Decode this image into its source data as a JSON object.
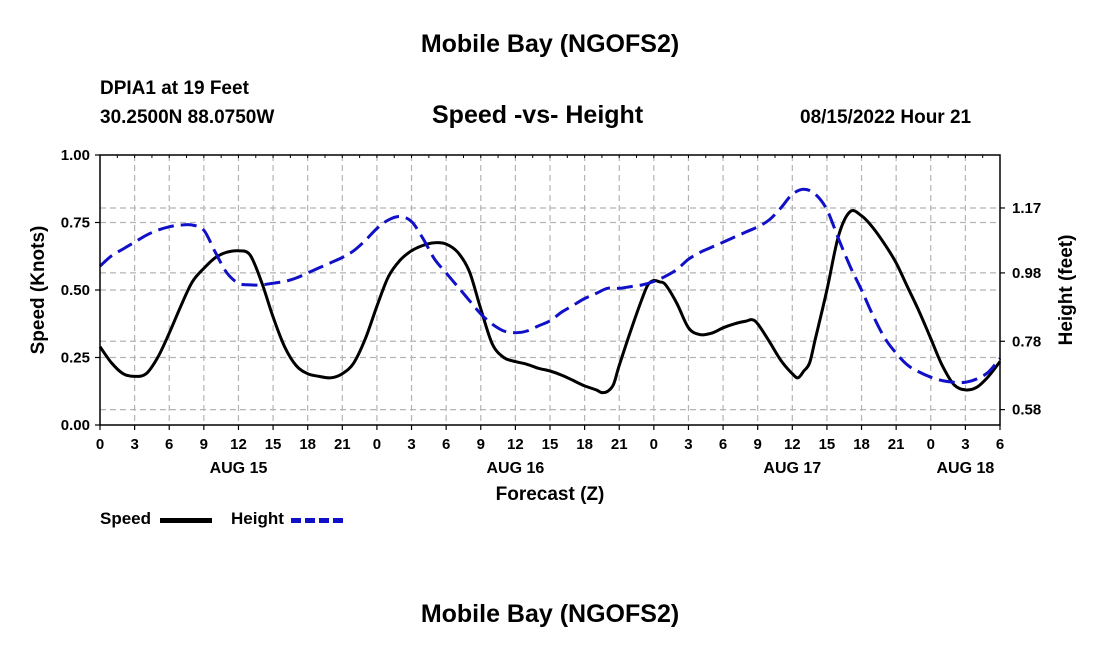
{
  "header": {
    "title": "Mobile Bay (NGOFS2)",
    "station": "DPIA1 at 19 Feet",
    "coords": "30.2500N  88.0750W",
    "subtitle": "Speed -vs- Height",
    "datetime": "08/15/2022 Hour 21"
  },
  "footer": {
    "title": "Mobile Bay (NGOFS2)"
  },
  "legend": {
    "speed_label": "Speed",
    "height_label": "Height"
  },
  "colors": {
    "speed": "#000000",
    "height": "#1010c8",
    "grid": "#b4b4b4"
  },
  "chart_data": {
    "type": "line",
    "xlabel": "Forecast (Z)",
    "ylabel_left": "Speed (Knots)",
    "ylabel_right": "Height (feet)",
    "x_range_hours": [
      0,
      78
    ],
    "x_ticks": [
      {
        "h": 0,
        "label": "0"
      },
      {
        "h": 3,
        "label": "3"
      },
      {
        "h": 6,
        "label": "6"
      },
      {
        "h": 9,
        "label": "9"
      },
      {
        "h": 12,
        "label": "12"
      },
      {
        "h": 15,
        "label": "15"
      },
      {
        "h": 18,
        "label": "18"
      },
      {
        "h": 21,
        "label": "21"
      },
      {
        "h": 24,
        "label": "0"
      },
      {
        "h": 27,
        "label": "3"
      },
      {
        "h": 30,
        "label": "6"
      },
      {
        "h": 33,
        "label": "9"
      },
      {
        "h": 36,
        "label": "12"
      },
      {
        "h": 39,
        "label": "15"
      },
      {
        "h": 42,
        "label": "18"
      },
      {
        "h": 45,
        "label": "21"
      },
      {
        "h": 48,
        "label": "0"
      },
      {
        "h": 51,
        "label": "3"
      },
      {
        "h": 54,
        "label": "6"
      },
      {
        "h": 57,
        "label": "9"
      },
      {
        "h": 60,
        "label": "12"
      },
      {
        "h": 63,
        "label": "15"
      },
      {
        "h": 66,
        "label": "18"
      },
      {
        "h": 69,
        "label": "21"
      },
      {
        "h": 72,
        "label": "0"
      },
      {
        "h": 75,
        "label": "3"
      },
      {
        "h": 78,
        "label": "6"
      }
    ],
    "date_labels": [
      {
        "h": 12,
        "label": "AUG 15"
      },
      {
        "h": 36,
        "label": "AUG 16"
      },
      {
        "h": 60,
        "label": "AUG 17"
      },
      {
        "h": 75,
        "label": "AUG 18"
      }
    ],
    "y_left": {
      "range": [
        0,
        1
      ],
      "ticks": [
        {
          "v": 0,
          "label": "0.00"
        },
        {
          "v": 0.25,
          "label": "0.25"
        },
        {
          "v": 0.5,
          "label": "0.50"
        },
        {
          "v": 0.75,
          "label": "0.75"
        },
        {
          "v": 1,
          "label": "1.00"
        }
      ]
    },
    "y_right": {
      "range": [
        0.535,
        1.325
      ],
      "ticks": [
        {
          "v": 0.58,
          "label": "0.58"
        },
        {
          "v": 0.78,
          "label": "0.78"
        },
        {
          "v": 0.98,
          "label": "0.98"
        },
        {
          "v": 1.17,
          "label": "1.17"
        }
      ]
    },
    "series": [
      {
        "name": "Speed",
        "axis": "left",
        "style": "solid",
        "points": [
          [
            0,
            0.29
          ],
          [
            1,
            0.23
          ],
          [
            2,
            0.19
          ],
          [
            3,
            0.18
          ],
          [
            4,
            0.19
          ],
          [
            5,
            0.25
          ],
          [
            6,
            0.34
          ],
          [
            7,
            0.44
          ],
          [
            8,
            0.53
          ],
          [
            9,
            0.58
          ],
          [
            10,
            0.62
          ],
          [
            11,
            0.64
          ],
          [
            12,
            0.645
          ],
          [
            13,
            0.63
          ],
          [
            14,
            0.53
          ],
          [
            15,
            0.4
          ],
          [
            16,
            0.29
          ],
          [
            17,
            0.22
          ],
          [
            18,
            0.19
          ],
          [
            19,
            0.18
          ],
          [
            20,
            0.175
          ],
          [
            21,
            0.19
          ],
          [
            22,
            0.23
          ],
          [
            23,
            0.32
          ],
          [
            24,
            0.44
          ],
          [
            25,
            0.55
          ],
          [
            26,
            0.61
          ],
          [
            27,
            0.645
          ],
          [
            28,
            0.665
          ],
          [
            29,
            0.675
          ],
          [
            30,
            0.67
          ],
          [
            31,
            0.64
          ],
          [
            32,
            0.57
          ],
          [
            33,
            0.43
          ],
          [
            34,
            0.3
          ],
          [
            35,
            0.25
          ],
          [
            36,
            0.235
          ],
          [
            37,
            0.225
          ],
          [
            38,
            0.21
          ],
          [
            39,
            0.2
          ],
          [
            40,
            0.185
          ],
          [
            41,
            0.165
          ],
          [
            42,
            0.145
          ],
          [
            43,
            0.13
          ],
          [
            43.5,
            0.12
          ],
          [
            44,
            0.125
          ],
          [
            44.5,
            0.15
          ],
          [
            45,
            0.22
          ],
          [
            46,
            0.35
          ],
          [
            47,
            0.47
          ],
          [
            47.5,
            0.52
          ],
          [
            48,
            0.535
          ],
          [
            48.5,
            0.53
          ],
          [
            49,
            0.52
          ],
          [
            50,
            0.45
          ],
          [
            51,
            0.36
          ],
          [
            52,
            0.335
          ],
          [
            53,
            0.34
          ],
          [
            54,
            0.36
          ],
          [
            55,
            0.375
          ],
          [
            56,
            0.385
          ],
          [
            56.5,
            0.39
          ],
          [
            57,
            0.375
          ],
          [
            58,
            0.31
          ],
          [
            59,
            0.24
          ],
          [
            60,
            0.19
          ],
          [
            60.5,
            0.175
          ],
          [
            61,
            0.2
          ],
          [
            61.5,
            0.23
          ],
          [
            62,
            0.32
          ],
          [
            63,
            0.5
          ],
          [
            64,
            0.7
          ],
          [
            65,
            0.79
          ],
          [
            66,
            0.775
          ],
          [
            67,
            0.73
          ],
          [
            68,
            0.67
          ],
          [
            69,
            0.6
          ],
          [
            70,
            0.51
          ],
          [
            71,
            0.42
          ],
          [
            72,
            0.32
          ],
          [
            73,
            0.22
          ],
          [
            74,
            0.15
          ],
          [
            75,
            0.13
          ],
          [
            76,
            0.14
          ],
          [
            77,
            0.18
          ],
          [
            78,
            0.235
          ]
        ]
      },
      {
        "name": "Height",
        "axis": "right",
        "style": "dashed",
        "points": [
          [
            0,
            1.0
          ],
          [
            1,
            1.03
          ],
          [
            2,
            1.05
          ],
          [
            3,
            1.07
          ],
          [
            4,
            1.09
          ],
          [
            5,
            1.105
          ],
          [
            6,
            1.115
          ],
          [
            7,
            1.12
          ],
          [
            8,
            1.12
          ],
          [
            9,
            1.105
          ],
          [
            10,
            1.04
          ],
          [
            11,
            0.98
          ],
          [
            12,
            0.95
          ],
          [
            13,
            0.945
          ],
          [
            14,
            0.945
          ],
          [
            15,
            0.95
          ],
          [
            16,
            0.955
          ],
          [
            17,
            0.965
          ],
          [
            18,
            0.98
          ],
          [
            19,
            0.995
          ],
          [
            20,
            1.01
          ],
          [
            21,
            1.025
          ],
          [
            22,
            1.045
          ],
          [
            23,
            1.075
          ],
          [
            24,
            1.11
          ],
          [
            25,
            1.135
          ],
          [
            26,
            1.145
          ],
          [
            27,
            1.13
          ],
          [
            28,
            1.08
          ],
          [
            29,
            1.02
          ],
          [
            30,
            0.98
          ],
          [
            31,
            0.94
          ],
          [
            32,
            0.9
          ],
          [
            33,
            0.86
          ],
          [
            34,
            0.83
          ],
          [
            35,
            0.81
          ],
          [
            36,
            0.805
          ],
          [
            37,
            0.81
          ],
          [
            38,
            0.825
          ],
          [
            39,
            0.84
          ],
          [
            40,
            0.865
          ],
          [
            41,
            0.885
          ],
          [
            42,
            0.905
          ],
          [
            43,
            0.92
          ],
          [
            44,
            0.935
          ],
          [
            45,
            0.935
          ],
          [
            46,
            0.94
          ],
          [
            47,
            0.945
          ],
          [
            48,
            0.955
          ],
          [
            49,
            0.97
          ],
          [
            50,
            0.99
          ],
          [
            51,
            1.02
          ],
          [
            52,
            1.04
          ],
          [
            53,
            1.055
          ],
          [
            54,
            1.07
          ],
          [
            55,
            1.085
          ],
          [
            56,
            1.1
          ],
          [
            57,
            1.115
          ],
          [
            58,
            1.135
          ],
          [
            59,
            1.17
          ],
          [
            60,
            1.21
          ],
          [
            61,
            1.225
          ],
          [
            62,
            1.21
          ],
          [
            63,
            1.165
          ],
          [
            64,
            1.08
          ],
          [
            65,
            1.0
          ],
          [
            66,
            0.93
          ],
          [
            67,
            0.855
          ],
          [
            68,
            0.79
          ],
          [
            69,
            0.745
          ],
          [
            70,
            0.71
          ],
          [
            71,
            0.69
          ],
          [
            72,
            0.675
          ],
          [
            73,
            0.665
          ],
          [
            74,
            0.66
          ],
          [
            75,
            0.66
          ],
          [
            76,
            0.67
          ],
          [
            77,
            0.69
          ],
          [
            78,
            0.73
          ]
        ]
      }
    ]
  }
}
